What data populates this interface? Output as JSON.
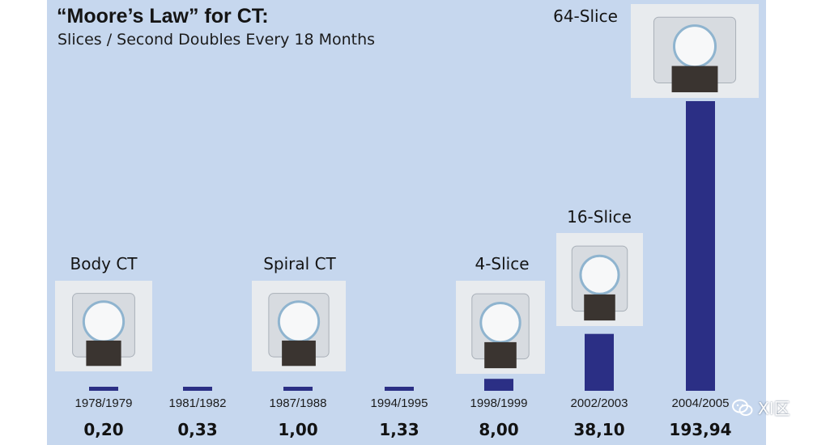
{
  "chart_data": {
    "type": "bar",
    "title": "“Moore’s Law” for CT:",
    "subtitle": "Slices / Second Doubles Every 18 Months",
    "xlabel": "",
    "ylabel": "",
    "categories": [
      "1978/1979",
      "1981/1982",
      "1987/1988",
      "1994/1995",
      "1998/1999",
      "2002/2003",
      "2004/2005"
    ],
    "values": [
      0.2,
      0.33,
      1.0,
      1.33,
      8.0,
      38.1,
      193.94
    ],
    "value_labels": [
      "0,20",
      "0,33",
      "1,00",
      "1,33",
      "8,00",
      "38,10",
      "193,94"
    ],
    "bar_color": "#2b2f85",
    "background_color": "#c6d7ee",
    "annotations": [
      {
        "label": "Body CT",
        "category": "1978/1979",
        "image": "ct-scanner"
      },
      {
        "label": "Spiral CT",
        "category": "1987/1988",
        "image": "ct-scanner"
      },
      {
        "label": "4-Slice",
        "category": "1998/1999",
        "image": "ct-scanner"
      },
      {
        "label": "16-Slice",
        "category": "2002/2003",
        "image": "ct-scanner"
      },
      {
        "label": "64-Slice",
        "category": "2004/2005",
        "image": "ct-scanner"
      }
    ]
  },
  "watermark": {
    "text": "XI区",
    "icon": "wechat-icon"
  }
}
